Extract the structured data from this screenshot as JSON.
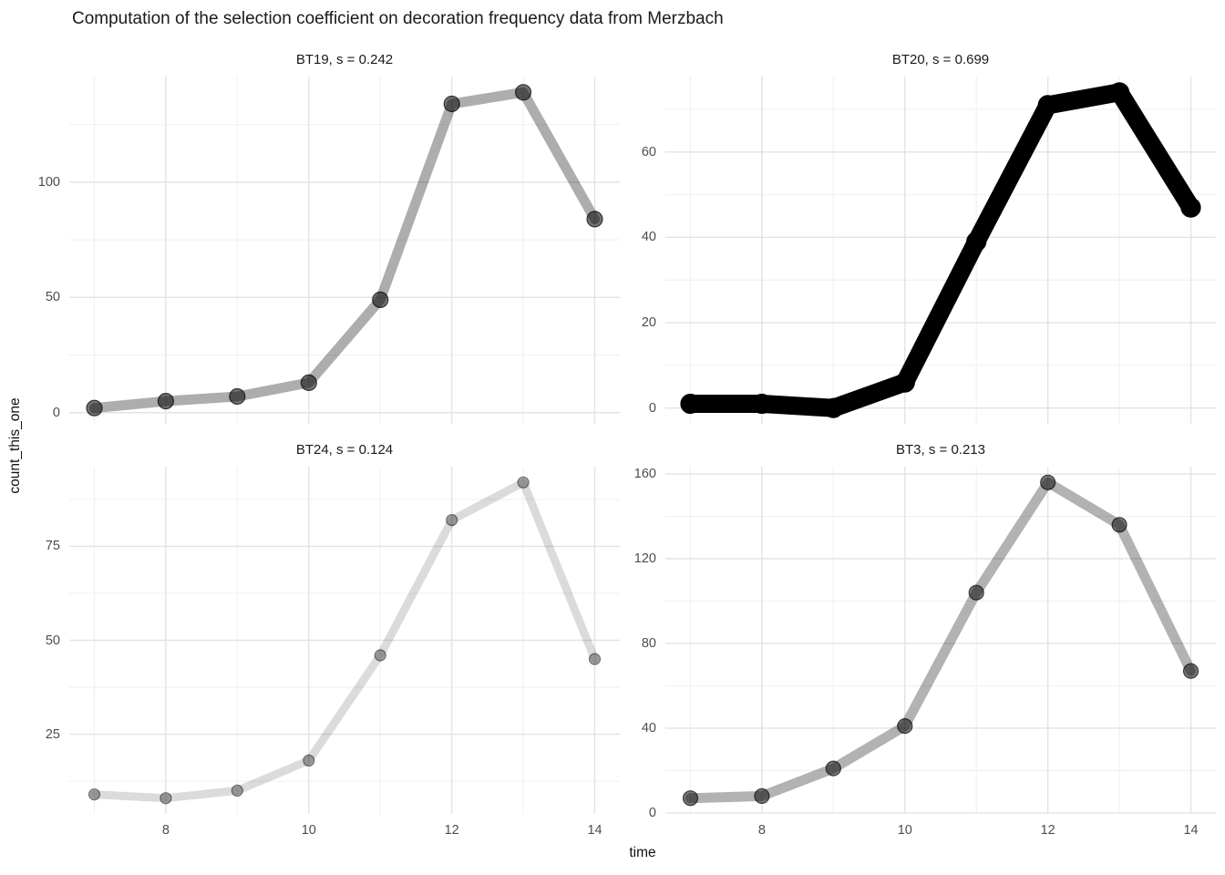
{
  "title": "Computation of the selection coefficient on decoration frequency data from Merzbach",
  "x_axis": {
    "label": "time",
    "tick_labels": [
      "8",
      "10",
      "12",
      "14"
    ],
    "tick_values": [
      8,
      10,
      12,
      14
    ],
    "minor_values": [
      7,
      9,
      11,
      13
    ],
    "domain": [
      6.65,
      14.35
    ]
  },
  "y_axis": {
    "label": "count_this_one"
  },
  "colors": {
    "background": "#ffffff",
    "grid_major": "#e3e3e3",
    "grid_minor": "#efefef",
    "tick_label": "#4d4d4d",
    "text": "#1a1a1a",
    "series": "#000000"
  },
  "chart_data": [
    {
      "type": "line",
      "facet_label": "BT19, s = 0.242",
      "series_name": "BT19",
      "selection_coefficient": 0.242,
      "x": [
        7,
        8,
        9,
        10,
        11,
        12,
        13,
        14
      ],
      "values": [
        2,
        5,
        7,
        13,
        49,
        134,
        139,
        84
      ],
      "y_ticks": [
        0,
        50,
        100
      ],
      "y_minor": [
        25,
        75,
        125
      ],
      "y_domain": [
        -4.85,
        145.85
      ],
      "line_width": 11,
      "line_opacity": 0.32,
      "point_radius": 8.5,
      "point_opacity": 0.55
    },
    {
      "type": "line",
      "facet_label": "BT20, s = 0.699",
      "series_name": "BT20",
      "selection_coefficient": 0.699,
      "x": [
        7,
        8,
        9,
        10,
        11,
        12,
        13,
        14
      ],
      "values": [
        1,
        1,
        0,
        6,
        39,
        71,
        74,
        47
      ],
      "y_ticks": [
        0,
        20,
        40,
        60
      ],
      "y_minor": [
        10,
        30,
        50,
        70
      ],
      "y_domain": [
        -3.7,
        77.7
      ],
      "line_width": 20,
      "line_opacity": 1,
      "point_radius": 10.5,
      "point_opacity": 1
    },
    {
      "type": "line",
      "facet_label": "BT24, s = 0.124",
      "series_name": "BT24",
      "selection_coefficient": 0.124,
      "x": [
        7,
        8,
        9,
        10,
        11,
        12,
        13,
        14
      ],
      "values": [
        9,
        8,
        10,
        18,
        46,
        82,
        92,
        45
      ],
      "y_ticks": [
        25,
        50,
        75
      ],
      "y_minor": [
        12.5,
        37.5,
        62.5,
        87.5
      ],
      "y_domain": [
        3.8,
        96.2
      ],
      "line_width": 9,
      "line_opacity": 0.14,
      "point_radius": 6,
      "point_opacity": 0.32
    },
    {
      "type": "line",
      "facet_label": "BT3, s = 0.213",
      "series_name": "BT3",
      "selection_coefficient": 0.213,
      "x": [
        7,
        8,
        9,
        10,
        11,
        12,
        13,
        14
      ],
      "values": [
        7,
        8,
        21,
        41,
        104,
        156,
        136,
        67
      ],
      "y_ticks": [
        0,
        40,
        80,
        120,
        160
      ],
      "y_minor": [
        20,
        60,
        100,
        140
      ],
      "y_domain": [
        -0.45,
        163.45
      ],
      "line_width": 11,
      "line_opacity": 0.3,
      "point_radius": 8,
      "point_opacity": 0.52
    }
  ]
}
